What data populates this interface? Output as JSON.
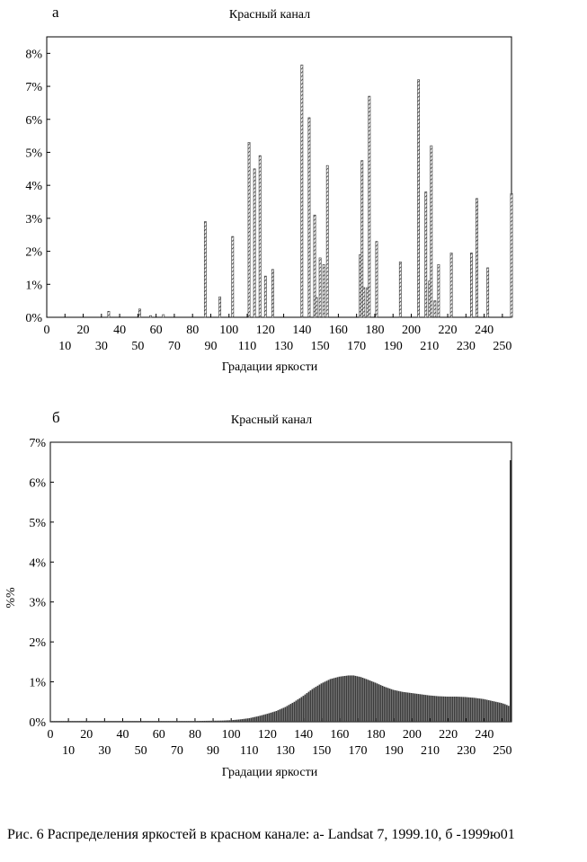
{
  "chart_data": [
    {
      "type": "bar",
      "panel_label": "а",
      "title": "Красный канал",
      "xlabel": "Градации яркости",
      "ylabel": "",
      "ylim": [
        0,
        8.5
      ],
      "xlim": [
        0,
        255
      ],
      "y_ticks": [
        "0%",
        "1%",
        "2%",
        "3%",
        "4%",
        "5%",
        "6%",
        "7%",
        "8%"
      ],
      "x_ticks_upper": [
        "0",
        "20",
        "40",
        "60",
        "80",
        "100",
        "120",
        "140",
        "160",
        "180",
        "200",
        "220",
        "240"
      ],
      "x_ticks_lower": [
        "10",
        "30",
        "50",
        "70",
        "90",
        "110",
        "130",
        "150",
        "170",
        "190",
        "210",
        "230",
        "250"
      ],
      "x": [
        34,
        51,
        57,
        64,
        87,
        95,
        102,
        111,
        114,
        117,
        120,
        124,
        140,
        144,
        147,
        148,
        150,
        152,
        154,
        172,
        173,
        174,
        176,
        177,
        181,
        194,
        204,
        208,
        210,
        211,
        213,
        215,
        222,
        233,
        236,
        242,
        255
      ],
      "values": [
        0.18,
        0.25,
        0.05,
        0.08,
        2.9,
        0.62,
        2.45,
        5.3,
        4.5,
        4.9,
        1.25,
        1.45,
        7.65,
        6.05,
        3.1,
        0.6,
        1.8,
        1.6,
        4.6,
        1.9,
        4.75,
        0.9,
        0.9,
        6.7,
        2.3,
        1.68,
        7.2,
        3.8,
        1.1,
        5.2,
        0.5,
        1.6,
        1.95,
        1.95,
        3.6,
        1.5,
        3.75
      ]
    },
    {
      "type": "bar",
      "panel_label": "б",
      "title": "Красный канал",
      "xlabel": "Градации яркости",
      "ylabel": "%%",
      "ylim": [
        0,
        7
      ],
      "xlim": [
        0,
        255
      ],
      "y_ticks": [
        "0%",
        "1%",
        "2%",
        "3%",
        "4%",
        "5%",
        "6%",
        "7%"
      ],
      "x_ticks_upper": [
        "0",
        "20",
        "40",
        "60",
        "80",
        "100",
        "120",
        "140",
        "160",
        "180",
        "200",
        "220",
        "240"
      ],
      "x_ticks_lower": [
        "10",
        "30",
        "50",
        "70",
        "90",
        "110",
        "130",
        "150",
        "170",
        "190",
        "210",
        "230",
        "250"
      ],
      "x": [
        0,
        80,
        95,
        100,
        105,
        110,
        115,
        120,
        125,
        130,
        135,
        140,
        145,
        150,
        155,
        160,
        165,
        168,
        172,
        175,
        180,
        185,
        190,
        195,
        200,
        205,
        210,
        215,
        220,
        225,
        230,
        235,
        240,
        245,
        250,
        252,
        253,
        254,
        255
      ],
      "values": [
        0.02,
        0.02,
        0.03,
        0.04,
        0.06,
        0.09,
        0.14,
        0.2,
        0.27,
        0.37,
        0.5,
        0.65,
        0.82,
        0.96,
        1.07,
        1.13,
        1.16,
        1.16,
        1.12,
        1.07,
        0.98,
        0.88,
        0.8,
        0.75,
        0.72,
        0.69,
        0.66,
        0.64,
        0.63,
        0.63,
        0.62,
        0.6,
        0.57,
        0.52,
        0.47,
        0.44,
        0.42,
        0.4,
        6.55
      ]
    }
  ],
  "caption": "Рис. 6 Распределения яркостей в красном канале: а- Landsat 7, 1999.10, б -1999ю01"
}
